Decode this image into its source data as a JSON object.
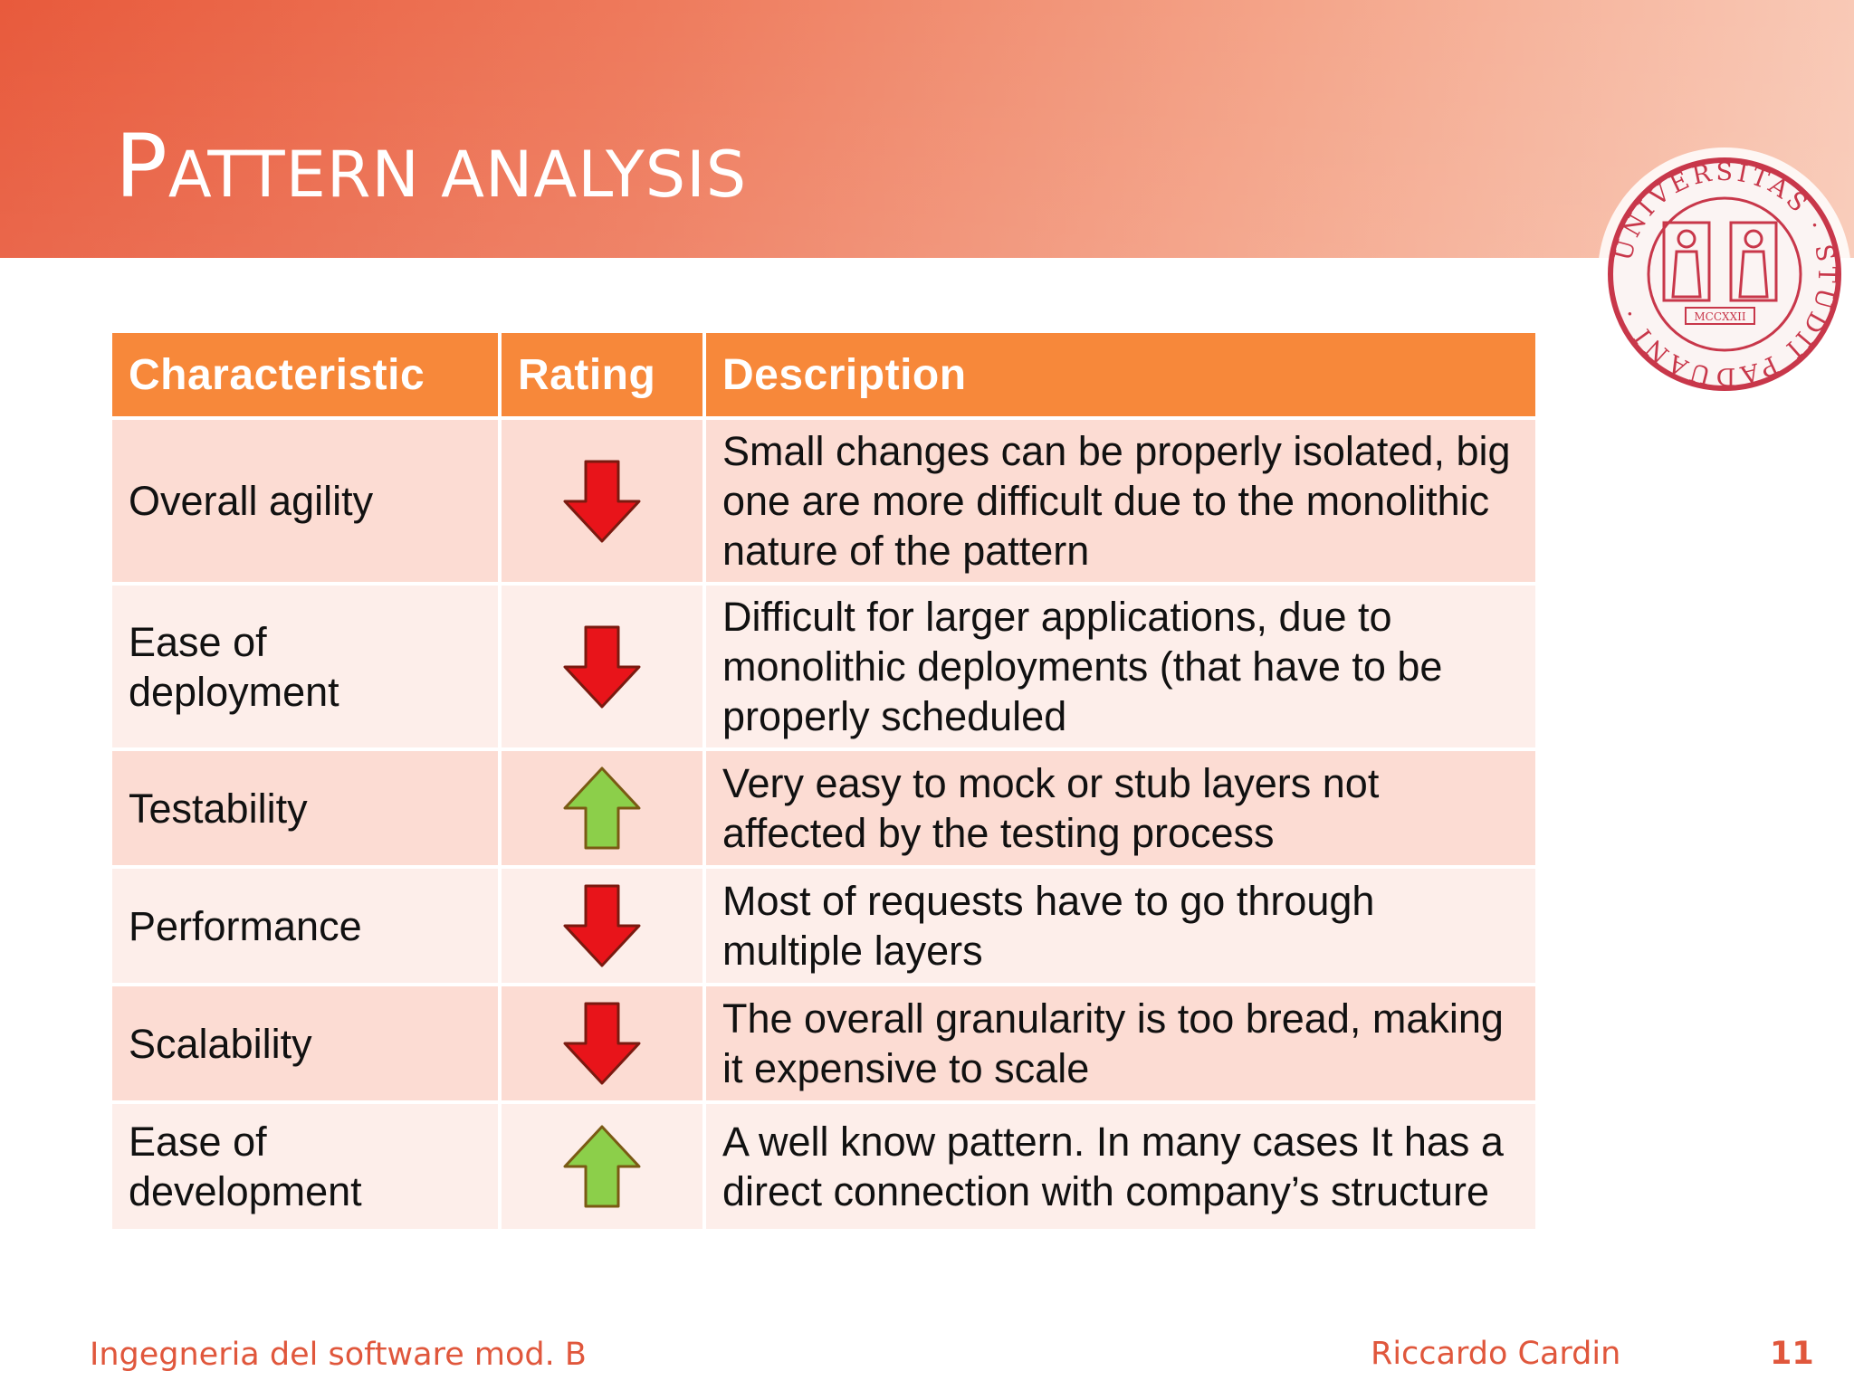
{
  "slide": {
    "title_initial": "P",
    "title_rest": "ATTERN ANALYSIS",
    "seal_text": "UNIVERSITAS · STUDII PADUANI ·",
    "seal_year": "MCCXXII"
  },
  "table": {
    "headers": {
      "characteristic": "Characteristic",
      "rating": "Rating",
      "description": "Description"
    },
    "rows": [
      {
        "characteristic": "Overall agility",
        "rating": "down",
        "description": "Small changes can be properly isolated, big one are more difficult due to the monolithic nature of the pattern"
      },
      {
        "characteristic": "Ease of deployment",
        "rating": "down",
        "description": "Difficult for larger applications, due to monolithic deployments (that have to be properly scheduled"
      },
      {
        "characteristic": "Testability",
        "rating": "up",
        "description": "Very easy to mock or stub layers not affected by the testing process"
      },
      {
        "characteristic": "Performance",
        "rating": "down",
        "description": "Most of requests have to go through multiple layers"
      },
      {
        "characteristic": "Scalability",
        "rating": "down",
        "description": "The overall granularity is too bread, making it expensive to scale"
      },
      {
        "characteristic": "Ease of development",
        "rating": "up",
        "description": "A well know pattern. In many cases It has a direct connection with company’s structure"
      }
    ]
  },
  "footer": {
    "course": "Ingegneria del software mod. B",
    "author": "Riccardo Cardin",
    "page_number": "11"
  },
  "colors": {
    "accent": "#f7883a",
    "header_band": "#e85a3c",
    "row_odd": "#fcdcd3",
    "row_even": "#fdeeea",
    "arrow_down": "#e8141a",
    "arrow_up": "#8ccf4a",
    "footer_text": "#e0573c"
  }
}
